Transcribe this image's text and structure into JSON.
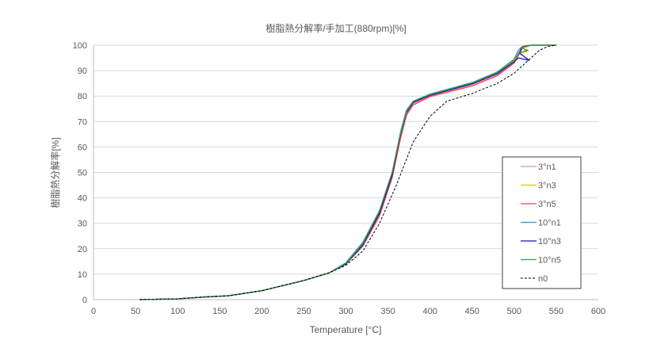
{
  "chart_data": {
    "type": "line",
    "title": "樹脂熱分解率/手加工(880rpm)[%]",
    "xlabel": "Temperature [°C]",
    "ylabel": "樹脂熱分解率[%]",
    "xlim": [
      0,
      600
    ],
    "ylim": [
      0,
      100
    ],
    "xticks": [
      0,
      50,
      100,
      150,
      200,
      250,
      300,
      350,
      400,
      450,
      500,
      550,
      600
    ],
    "yticks": [
      0,
      10,
      20,
      30,
      40,
      50,
      60,
      70,
      80,
      90,
      100
    ],
    "grid": "horizontal",
    "legend_position": "right",
    "series": [
      {
        "name": "3°n1",
        "color": "#e58fd6",
        "dash": false,
        "x": [
          55,
          100,
          130,
          160,
          200,
          250,
          280,
          300,
          320,
          340,
          355,
          365,
          372,
          380,
          400,
          450,
          480,
          500,
          505,
          510,
          520,
          550
        ],
        "y": [
          0,
          0.3,
          1,
          1.5,
          3.5,
          7.5,
          10.5,
          14,
          21,
          33,
          48,
          64,
          73,
          77,
          80,
          84.5,
          88.5,
          93.5,
          97,
          99,
          100,
          100
        ]
      },
      {
        "name": "3°n3",
        "color": "#e6c000",
        "dash": false,
        "x": [
          55,
          100,
          130,
          160,
          200,
          250,
          280,
          300,
          320,
          340,
          355,
          365,
          372,
          380,
          400,
          450,
          480,
          500,
          508,
          515,
          510,
          520,
          550
        ],
        "y": [
          0,
          0.3,
          1,
          1.5,
          3.5,
          7.5,
          10.5,
          14,
          21.5,
          34,
          49,
          65,
          73.5,
          77.5,
          80.3,
          85,
          89,
          94,
          97,
          97.5,
          99,
          100,
          100
        ]
      },
      {
        "name": "3°n5",
        "color": "#ff4040",
        "dash": false,
        "x": [
          55,
          100,
          130,
          160,
          200,
          250,
          280,
          300,
          320,
          340,
          355,
          365,
          372,
          380,
          400,
          450,
          480,
          500,
          505,
          510,
          520,
          550
        ],
        "y": [
          0,
          0.3,
          1,
          1.5,
          3.5,
          7.5,
          10.5,
          14,
          21,
          33,
          48,
          63.5,
          72.5,
          76.5,
          79.8,
          84,
          88,
          93,
          96,
          99,
          100,
          100
        ]
      },
      {
        "name": "10°n1",
        "color": "#2e9acb",
        "dash": false,
        "x": [
          55,
          100,
          130,
          160,
          200,
          250,
          280,
          300,
          320,
          340,
          355,
          365,
          372,
          380,
          400,
          450,
          480,
          500,
          505,
          510,
          520,
          550
        ],
        "y": [
          0,
          0.3,
          1,
          1.5,
          3.5,
          7.5,
          10.5,
          14.5,
          22.5,
          35,
          50,
          66,
          74.5,
          78,
          80.8,
          85.3,
          89.5,
          94.5,
          98,
          99.5,
          100,
          100
        ]
      },
      {
        "name": "10°n3",
        "color": "#1010c0",
        "dash": false,
        "x": [
          55,
          100,
          130,
          160,
          200,
          250,
          280,
          300,
          320,
          340,
          355,
          365,
          372,
          380,
          400,
          450,
          480,
          500,
          505,
          518,
          506,
          510,
          520,
          550
        ],
        "y": [
          0,
          0.3,
          1,
          1.5,
          3.5,
          7.5,
          10.5,
          14,
          21.5,
          34,
          49,
          65,
          73.5,
          77.5,
          80.3,
          84.8,
          88.8,
          93.5,
          95,
          94,
          97,
          99.5,
          100,
          100
        ]
      },
      {
        "name": "10°n5",
        "color": "#3aa03a",
        "dash": false,
        "x": [
          55,
          100,
          130,
          160,
          200,
          250,
          280,
          300,
          320,
          340,
          355,
          365,
          372,
          380,
          400,
          450,
          480,
          500,
          506,
          516,
          508,
          512,
          520,
          550
        ],
        "y": [
          0,
          0.3,
          1,
          1.5,
          3.5,
          7.5,
          10.5,
          14.3,
          22,
          35,
          50,
          65.5,
          74,
          78,
          80.6,
          85.2,
          89.3,
          94.3,
          97,
          98,
          99,
          99.7,
          100,
          100
        ]
      },
      {
        "name": "n0",
        "color": "#000000",
        "dash": true,
        "x": [
          55,
          100,
          130,
          160,
          200,
          250,
          280,
          300,
          320,
          340,
          360,
          380,
          400,
          420,
          450,
          480,
          500,
          520,
          530,
          540,
          550
        ],
        "y": [
          0,
          0.3,
          1,
          1.5,
          3.5,
          7.5,
          10.5,
          13.5,
          19,
          30,
          45,
          62,
          72,
          78,
          81,
          85,
          89,
          95,
          98,
          99.5,
          100
        ]
      }
    ]
  }
}
